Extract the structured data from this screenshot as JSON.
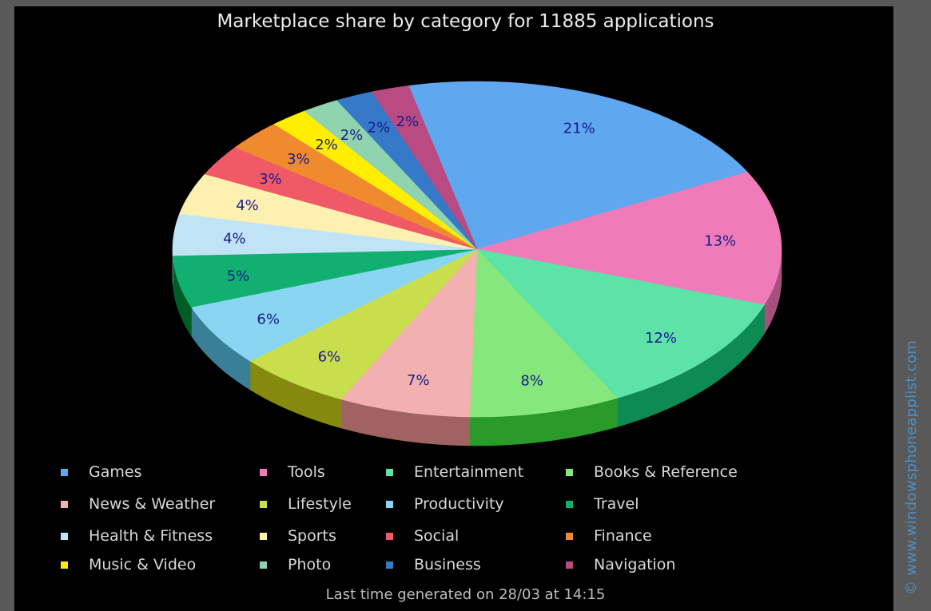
{
  "chart_data": {
    "type": "pie",
    "title": "Marketplace share by category for 11885 applications",
    "slices": [
      {
        "label": "Games",
        "value": 21,
        "display": "21%",
        "color": "#5fa8f0",
        "side": "#4682bb"
      },
      {
        "label": "Tools",
        "value": 13,
        "display": "13%",
        "color": "#ef7cb8",
        "side": "#a6507e"
      },
      {
        "label": "Entertainment",
        "value": 12,
        "display": "12%",
        "color": "#5de3a8",
        "side": "#0e8a55"
      },
      {
        "label": "Books & Reference",
        "value": 8,
        "display": "8%",
        "color": "#86e87c",
        "side": "#2a9a28"
      },
      {
        "label": "News & Weather",
        "value": 7,
        "display": "7%",
        "color": "#f2b0b0",
        "side": "#a06262"
      },
      {
        "label": "Lifestyle",
        "value": 6,
        "display": "6%",
        "color": "#c9de4d",
        "side": "#858a0f"
      },
      {
        "label": "Productivity",
        "value": 6,
        "display": "6%",
        "color": "#8ad6f2",
        "side": "#3a7f98"
      },
      {
        "label": "Travel",
        "value": 5,
        "display": "5%",
        "color": "#12b070",
        "side": "#005d26"
      },
      {
        "label": "Health & Fitness",
        "value": 4,
        "display": "4%",
        "color": "#c0e4f6",
        "side": "#6f95ad"
      },
      {
        "label": "Sports",
        "value": 4,
        "display": "4%",
        "color": "#fdf0b0",
        "side": "#b9a055"
      },
      {
        "label": "Social",
        "value": 3,
        "display": "3%",
        "color": "#ef5a66",
        "side": "#a83d45"
      },
      {
        "label": "Finance",
        "value": 3,
        "display": "3%",
        "color": "#f08a2e",
        "side": "#a05a18"
      },
      {
        "label": "Music & Video",
        "value": 2,
        "display": "2%",
        "color": "#ffee00",
        "side": "#a79c00"
      },
      {
        "label": "Photo",
        "value": 2,
        "display": "2%",
        "color": "#8fd4ae",
        "side": "#5a8e70"
      },
      {
        "label": "Business",
        "value": 2,
        "display": "2%",
        "color": "#3579c8",
        "side": "#224f84"
      },
      {
        "label": "Navigation",
        "value": 2,
        "display": "2%",
        "color": "#b94a82",
        "side": "#7a2f55"
      }
    ],
    "legend_order": [
      "Games",
      "Tools",
      "Entertainment",
      "Books & Reference",
      "News & Weather",
      "Lifestyle",
      "Productivity",
      "Travel",
      "Health & Fitness",
      "Sports",
      "Social",
      "Finance",
      "Music & Video",
      "Photo",
      "Business",
      "Navigation"
    ],
    "legend_placement": "bottom",
    "label_color": "#1a1a8c"
  },
  "footer": "Last time generated on 28/03 at 14:15",
  "watermark": "© www.windowsphoneapplist.com"
}
